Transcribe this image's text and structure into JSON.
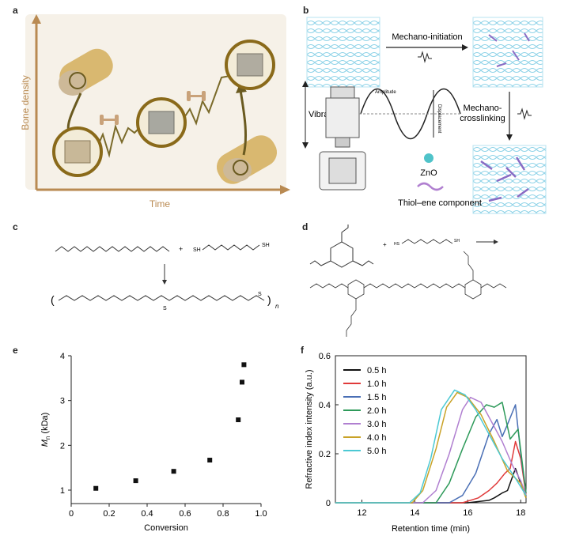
{
  "panels": {
    "a": "a",
    "b": "b",
    "c": "c",
    "d": "d",
    "e": "e",
    "f": "f"
  },
  "panel_a": {
    "ylabel": "Bone density",
    "xlabel": "Time",
    "axis_color": "#b98a52"
  },
  "panel_b": {
    "initiation": "Mechano-initiation",
    "crosslinking_line1": "Mechano-",
    "crosslinking_line2": "crosslinking",
    "vibration": "Vibration",
    "amplitude": "Amplitude",
    "displacement": "Displacement",
    "zno": "ZnO",
    "thiolene": "Thiol–ene component",
    "network_color": "#8fd3e8",
    "crosslink_color": "#8a6bc4",
    "zno_color": "#4fc3c9"
  },
  "panel_c": {
    "sh1": "SH",
    "sh2": "SH",
    "plus": "+",
    "sulfur1": "S",
    "sulfur2": "S",
    "n": "n"
  },
  "panel_d": {
    "plus": "+",
    "sh1": "HS",
    "sh2": "SH"
  },
  "chart_data": [
    {
      "type": "scatter",
      "xlabel": "Conversion",
      "ylabel": "Mn (kDa)",
      "ylabel_main": "M",
      "ylabel_sub": "n",
      "ylabel_rest": " (kDa)",
      "xlim": [
        0,
        1.0
      ],
      "ylim": [
        0.7,
        4.0
      ],
      "xticks": [
        "0",
        "0.2",
        "0.4",
        "0.6",
        "0.8",
        "1.0"
      ],
      "xtick_values": [
        0,
        0.2,
        0.4,
        0.6,
        0.8,
        1.0
      ],
      "yticks": [
        "1",
        "2",
        "3",
        "4"
      ],
      "ytick_values": [
        1,
        2,
        3,
        4
      ],
      "points": [
        {
          "x": 0.13,
          "y": 1.04
        },
        {
          "x": 0.34,
          "y": 1.21
        },
        {
          "x": 0.54,
          "y": 1.42
        },
        {
          "x": 0.73,
          "y": 1.67
        },
        {
          "x": 0.88,
          "y": 2.57
        },
        {
          "x": 0.9,
          "y": 3.41
        },
        {
          "x": 0.91,
          "y": 3.8
        }
      ]
    },
    {
      "type": "line",
      "xlabel": "Retention time (min)",
      "ylabel": "Refractive index intensity (a.u.)",
      "xlim": [
        11,
        18.2
      ],
      "ylim": [
        0,
        0.6
      ],
      "xticks": [
        "12",
        "14",
        "16",
        "18"
      ],
      "xtick_values": [
        12,
        14,
        16,
        18
      ],
      "yticks": [
        "0",
        "0.2",
        "0.4",
        "0.6"
      ],
      "ytick_values": [
        0,
        0.2,
        0.4,
        0.6
      ],
      "legend_position": "top-left",
      "series": [
        {
          "name": "0.5 h",
          "color": "#111111",
          "x": [
            11,
            16.0,
            16.8,
            17.0,
            17.3,
            17.5,
            17.8,
            18.0,
            18.2
          ],
          "y": [
            0,
            0,
            0.01,
            0.02,
            0.04,
            0.05,
            0.14,
            0.08,
            0.02
          ]
        },
        {
          "name": "1.0 h",
          "color": "#e03a3a",
          "x": [
            11,
            15.8,
            16.4,
            16.8,
            17.1,
            17.4,
            17.6,
            17.8,
            18.0,
            18.2
          ],
          "y": [
            0,
            0,
            0.02,
            0.05,
            0.08,
            0.12,
            0.14,
            0.25,
            0.18,
            0.03
          ]
        },
        {
          "name": "1.5 h",
          "color": "#4a6fb5",
          "x": [
            11,
            15.3,
            15.8,
            16.3,
            16.8,
            17.1,
            17.3,
            17.5,
            17.8,
            18.0,
            18.2
          ],
          "y": [
            0,
            0,
            0.03,
            0.12,
            0.28,
            0.34,
            0.27,
            0.32,
            0.4,
            0.2,
            0.04
          ]
        },
        {
          "name": "2.0 h",
          "color": "#2e9a5a",
          "x": [
            11,
            14.8,
            15.3,
            15.8,
            16.3,
            16.7,
            17.0,
            17.3,
            17.6,
            17.9,
            18.2
          ],
          "y": [
            0,
            0,
            0.08,
            0.22,
            0.35,
            0.4,
            0.39,
            0.41,
            0.26,
            0.3,
            0.04
          ]
        },
        {
          "name": "3.0 h",
          "color": "#b07fd0",
          "x": [
            11,
            14.3,
            14.8,
            15.3,
            15.8,
            16.1,
            16.5,
            16.9,
            17.3,
            17.7,
            18.0,
            18.2
          ],
          "y": [
            0,
            0,
            0.05,
            0.2,
            0.38,
            0.43,
            0.41,
            0.33,
            0.25,
            0.15,
            0.09,
            0.03
          ]
        },
        {
          "name": "4.0 h",
          "color": "#c9a227",
          "x": [
            11,
            13.9,
            14.3,
            14.8,
            15.2,
            15.6,
            16.0,
            16.5,
            17.0,
            17.5,
            18.0,
            18.2
          ],
          "y": [
            0,
            0,
            0.05,
            0.22,
            0.39,
            0.45,
            0.43,
            0.36,
            0.25,
            0.13,
            0.08,
            0.02
          ]
        },
        {
          "name": "5.0 h",
          "color": "#4cc9d4",
          "x": [
            11,
            13.8,
            14.2,
            14.6,
            15.0,
            15.5,
            15.9,
            16.3,
            16.8,
            17.3,
            17.8,
            18.2
          ],
          "y": [
            0,
            0,
            0.04,
            0.18,
            0.38,
            0.46,
            0.44,
            0.38,
            0.28,
            0.18,
            0.1,
            0.03
          ]
        }
      ]
    }
  ]
}
